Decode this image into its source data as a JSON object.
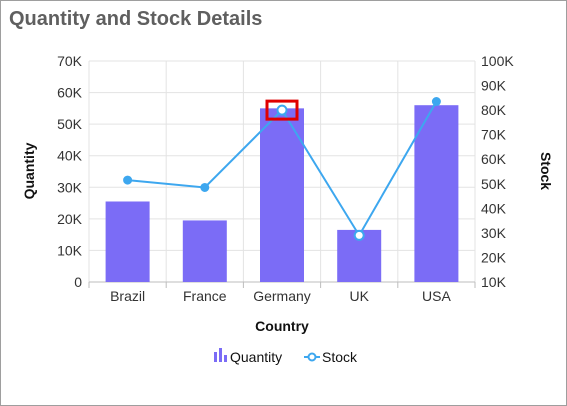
{
  "chart_data": {
    "type": "bar",
    "title": "Quantity and Stock Details",
    "categories": [
      "Brazil",
      "France",
      "Germany",
      "UK",
      "USA"
    ],
    "xlabel": "Country",
    "ylabel": "Quantity",
    "y2label": "Stock",
    "ylim": [
      0,
      70000
    ],
    "y2lim": [
      10000,
      100000
    ],
    "yticks": [
      "0",
      "10K",
      "20K",
      "30K",
      "40K",
      "50K",
      "60K",
      "70K"
    ],
    "y2ticks": [
      "10K",
      "20K",
      "30K",
      "40K",
      "50K",
      "60K",
      "70K",
      "80K",
      "90K",
      "100K"
    ],
    "grid": true,
    "legend_position": "bottom",
    "series": [
      {
        "name": "Quantity",
        "type": "bar",
        "axis": "left",
        "color": "#7b6cf6",
        "values": [
          25500,
          19500,
          55000,
          16500,
          56000
        ]
      },
      {
        "name": "Stock",
        "type": "line",
        "axis": "right",
        "color": "#3da7ef",
        "values": [
          51500,
          48500,
          80000,
          29000,
          83500
        ]
      }
    ],
    "highlight": {
      "category": "Germany",
      "series": "Stock",
      "color": "#e00000"
    }
  }
}
